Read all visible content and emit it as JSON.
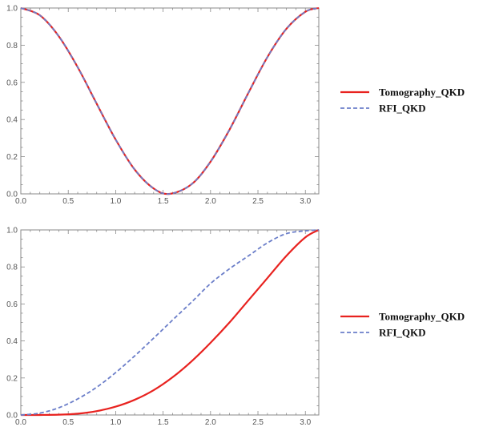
{
  "chart_data": [
    {
      "type": "line",
      "title": "",
      "xlabel": "",
      "ylabel": "",
      "xlim": [
        0,
        3.14159
      ],
      "ylim": [
        0,
        1
      ],
      "x_ticks": [
        "0.0",
        "0.5",
        "1.0",
        "1.5",
        "2.0",
        "2.5",
        "3.0"
      ],
      "y_ticks": [
        "0.0",
        "0.2",
        "0.4",
        "0.6",
        "0.8",
        "1.0"
      ],
      "x": [
        0,
        0.2,
        0.4,
        0.6,
        0.8,
        1.0,
        1.2,
        1.4,
        1.5708,
        1.8,
        2.0,
        2.2,
        2.4,
        2.6,
        2.8,
        3.0,
        3.14159
      ],
      "series": [
        {
          "name": "Tomography_QKD",
          "color": "#e8221f",
          "dash": "solid",
          "values": [
            1.0,
            0.961,
            0.848,
            0.681,
            0.485,
            0.292,
            0.131,
            0.029,
            0.0,
            0.052,
            0.173,
            0.345,
            0.544,
            0.736,
            0.888,
            0.98,
            1.0
          ]
        },
        {
          "name": "RFI_QKD",
          "color": "#6b7ec9",
          "dash": "dashed",
          "values": [
            1.0,
            0.961,
            0.848,
            0.681,
            0.485,
            0.292,
            0.131,
            0.029,
            0.0,
            0.052,
            0.173,
            0.345,
            0.544,
            0.736,
            0.888,
            0.98,
            1.0
          ]
        }
      ],
      "legend": "right"
    },
    {
      "type": "line",
      "title": "",
      "xlabel": "",
      "ylabel": "",
      "xlim": [
        0,
        3.14159
      ],
      "ylim": [
        0,
        1
      ],
      "x_ticks": [
        "0.0",
        "0.5",
        "1.0",
        "1.5",
        "2.0",
        "2.5",
        "3.0"
      ],
      "y_ticks": [
        "0.0",
        "0.2",
        "0.4",
        "0.6",
        "0.8",
        "1.0"
      ],
      "x": [
        0,
        0.2,
        0.4,
        0.6,
        0.8,
        1.0,
        1.2,
        1.4,
        1.6,
        1.8,
        2.0,
        2.2,
        2.4,
        2.6,
        2.8,
        3.0,
        3.14159
      ],
      "series": [
        {
          "name": "Tomography_QKD",
          "color": "#e8221f",
          "dash": "solid",
          "values": [
            0.0,
            0.0001,
            0.0015,
            0.007,
            0.021,
            0.045,
            0.082,
            0.134,
            0.204,
            0.29,
            0.39,
            0.5,
            0.62,
            0.74,
            0.86,
            0.96,
            1.0
          ]
        },
        {
          "name": "RFI_QKD",
          "color": "#6b7ec9",
          "dash": "dashed",
          "values": [
            0.0,
            0.01,
            0.039,
            0.087,
            0.15,
            0.229,
            0.319,
            0.415,
            0.513,
            0.61,
            0.71,
            0.79,
            0.86,
            0.93,
            0.98,
            0.995,
            1.0
          ]
        }
      ],
      "legend": "right"
    }
  ]
}
